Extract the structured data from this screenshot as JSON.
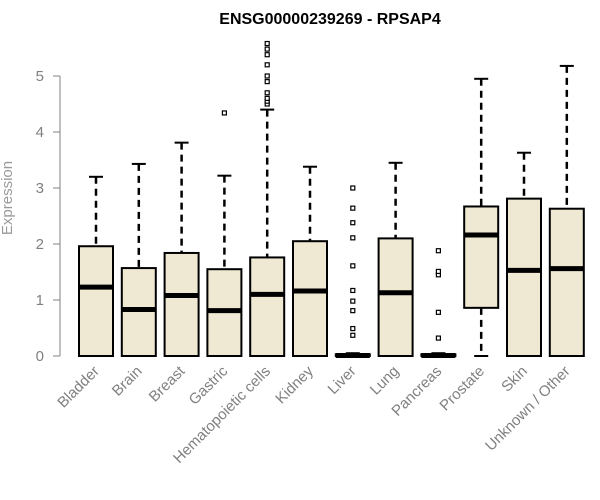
{
  "chart_data": {
    "type": "boxplot",
    "title": "ENSG00000239269 - RPSAP4",
    "xlabel": "",
    "ylabel": "Expression",
    "ylim": [
      0,
      5.6
    ],
    "yticks": [
      0,
      1,
      2,
      3,
      4,
      5
    ],
    "grid": false,
    "legend": "none",
    "colors": {
      "box_fill": "#efe8d2",
      "box_stroke": "#000000",
      "median": "#000000",
      "axis": "#808080",
      "ylabel": "#9a9a9a"
    },
    "categories": [
      "Bladder",
      "Brain",
      "Breast",
      "Gastric",
      "Hematopoietic cells",
      "Kidney",
      "Liver",
      "Lung",
      "Pancreas",
      "Prostate",
      "Skin",
      "Unknown / Other"
    ],
    "series": [
      {
        "category": "Bladder",
        "whisker_low": 0,
        "q1": 0,
        "median": 1.23,
        "q3": 1.96,
        "whisker_high": 3.2,
        "outliers": []
      },
      {
        "category": "Brain",
        "whisker_low": 0,
        "q1": 0,
        "median": 0.83,
        "q3": 1.57,
        "whisker_high": 3.43,
        "outliers": []
      },
      {
        "category": "Breast",
        "whisker_low": 0,
        "q1": 0,
        "median": 1.08,
        "q3": 1.84,
        "whisker_high": 3.81,
        "outliers": []
      },
      {
        "category": "Gastric",
        "whisker_low": 0,
        "q1": 0,
        "median": 0.81,
        "q3": 1.55,
        "whisker_high": 3.22,
        "outliers": [
          4.34
        ]
      },
      {
        "category": "Hematopoietic cells",
        "whisker_low": 0,
        "q1": 0,
        "median": 1.1,
        "q3": 1.76,
        "whisker_high": 4.4,
        "outliers": [
          4.5,
          4.55,
          4.6,
          4.7,
          4.9,
          5.0,
          5.2,
          5.38,
          5.48,
          5.58
        ]
      },
      {
        "category": "Kidney",
        "whisker_low": 0,
        "q1": 0,
        "median": 1.16,
        "q3": 2.05,
        "whisker_high": 3.38,
        "outliers": []
      },
      {
        "category": "Liver",
        "whisker_low": 0,
        "q1": 0,
        "median": 0.01,
        "q3": 0.03,
        "whisker_high": 0.05,
        "outliers": [
          0.37,
          0.49,
          0.81,
          0.98,
          1.17,
          1.61,
          2.11,
          2.38,
          2.64,
          3.0
        ]
      },
      {
        "category": "Lung",
        "whisker_low": 0,
        "q1": 0,
        "median": 1.13,
        "q3": 2.1,
        "whisker_high": 3.45,
        "outliers": []
      },
      {
        "category": "Pancreas",
        "whisker_low": 0,
        "q1": 0,
        "median": 0.01,
        "q3": 0.03,
        "whisker_high": 0.05,
        "outliers": [
          0.32,
          0.78,
          1.45,
          1.51,
          1.88
        ]
      },
      {
        "category": "Prostate",
        "whisker_low": 0,
        "q1": 0.86,
        "median": 2.16,
        "q3": 2.67,
        "whisker_high": 4.95,
        "outliers": []
      },
      {
        "category": "Skin",
        "whisker_low": 0,
        "q1": 0,
        "median": 1.53,
        "q3": 2.81,
        "whisker_high": 3.63,
        "outliers": []
      },
      {
        "category": "Unknown / Other",
        "whisker_low": 0,
        "q1": 0,
        "median": 1.56,
        "q3": 2.63,
        "whisker_high": 5.18,
        "outliers": []
      }
    ]
  }
}
